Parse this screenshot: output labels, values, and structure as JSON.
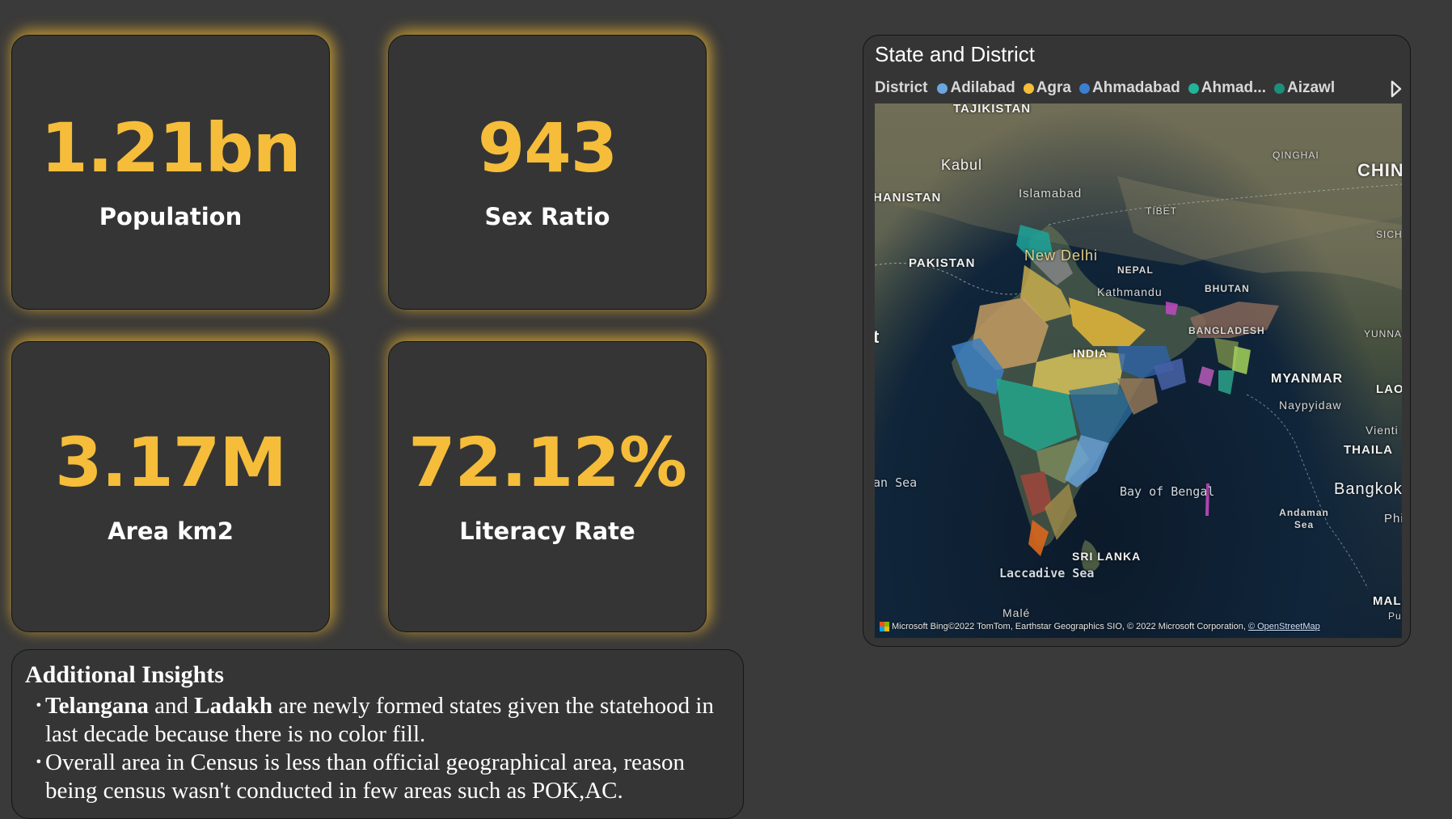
{
  "kpis": {
    "population": {
      "value": "1.21bn",
      "label": "Population"
    },
    "sex_ratio": {
      "value": "943",
      "label": "Sex Ratio"
    },
    "area": {
      "value": "3.17M",
      "label": "Area km2"
    },
    "literacy": {
      "value": "72.12%",
      "label": "Literacy Rate"
    }
  },
  "insights": {
    "title": "Additional Insights",
    "point1": {
      "b1": "Telangana",
      "t1": " and ",
      "b2": "Ladakh",
      "t2": " are newly formed states given the statehood in last decade because there is no color fill."
    },
    "point2": "Overall area in Census is less than official geographical area, reason being census wasn't conducted in few areas such as POK,AC."
  },
  "map_visual": {
    "title": "State and District",
    "legend_title": "District",
    "legend_items": [
      {
        "label": "Adilabad",
        "color": "#6aa6e0"
      },
      {
        "label": "Agra",
        "color": "#f5bd3a"
      },
      {
        "label": "Ahmadabad",
        "color": "#3b7fd1"
      },
      {
        "label": "Ahmad...",
        "color": "#22b39a"
      },
      {
        "label": "Aizawl",
        "color": "#1c8f7a"
      }
    ],
    "legend_next_icon": "play-right-icon",
    "labels": {
      "tajikistan": "TAJIKISTAN",
      "kabul": "Kabul",
      "afghanistan": "HANISTAN",
      "islamabad": "Islamabad",
      "qinghai": "QINGHAI",
      "china": "CHIN",
      "tibet": "TIBET",
      "sich": "SICH",
      "pakistan": "PAKISTAN",
      "new_delhi": "New Delhi",
      "nepal": "NEPAL",
      "kathmandu": "Kathmandu",
      "bhutan": "BHUTAN",
      "bangladesh": "BANGLADESH",
      "yunnan": "YUNNAN",
      "india": "INDIA",
      "myanmar": "MYANMAR",
      "lao": "LAO",
      "naypyidaw": "Naypyidaw",
      "vienti": "Vienti",
      "thaila": "THAILA",
      "arabian_sea": "an Sea",
      "bay_of_bengal": "Bay of Bengal",
      "bangkok": "Bangkok",
      "andaman_sea": "Andaman Sea",
      "phi": "Phi",
      "sri_lanka": "SRI LANKA",
      "laccadive_sea": "Laccadive Sea",
      "male": "Malé",
      "mala": "MALA",
      "pu": "Pu",
      "edge_t": "t"
    },
    "attribution": {
      "brand": "Microsoft Bing",
      "text": "©2022 TomTom, Earthstar Geographics SIO, © 2022 Microsoft Corporation, ",
      "osm": "© OpenStreetMap"
    }
  }
}
